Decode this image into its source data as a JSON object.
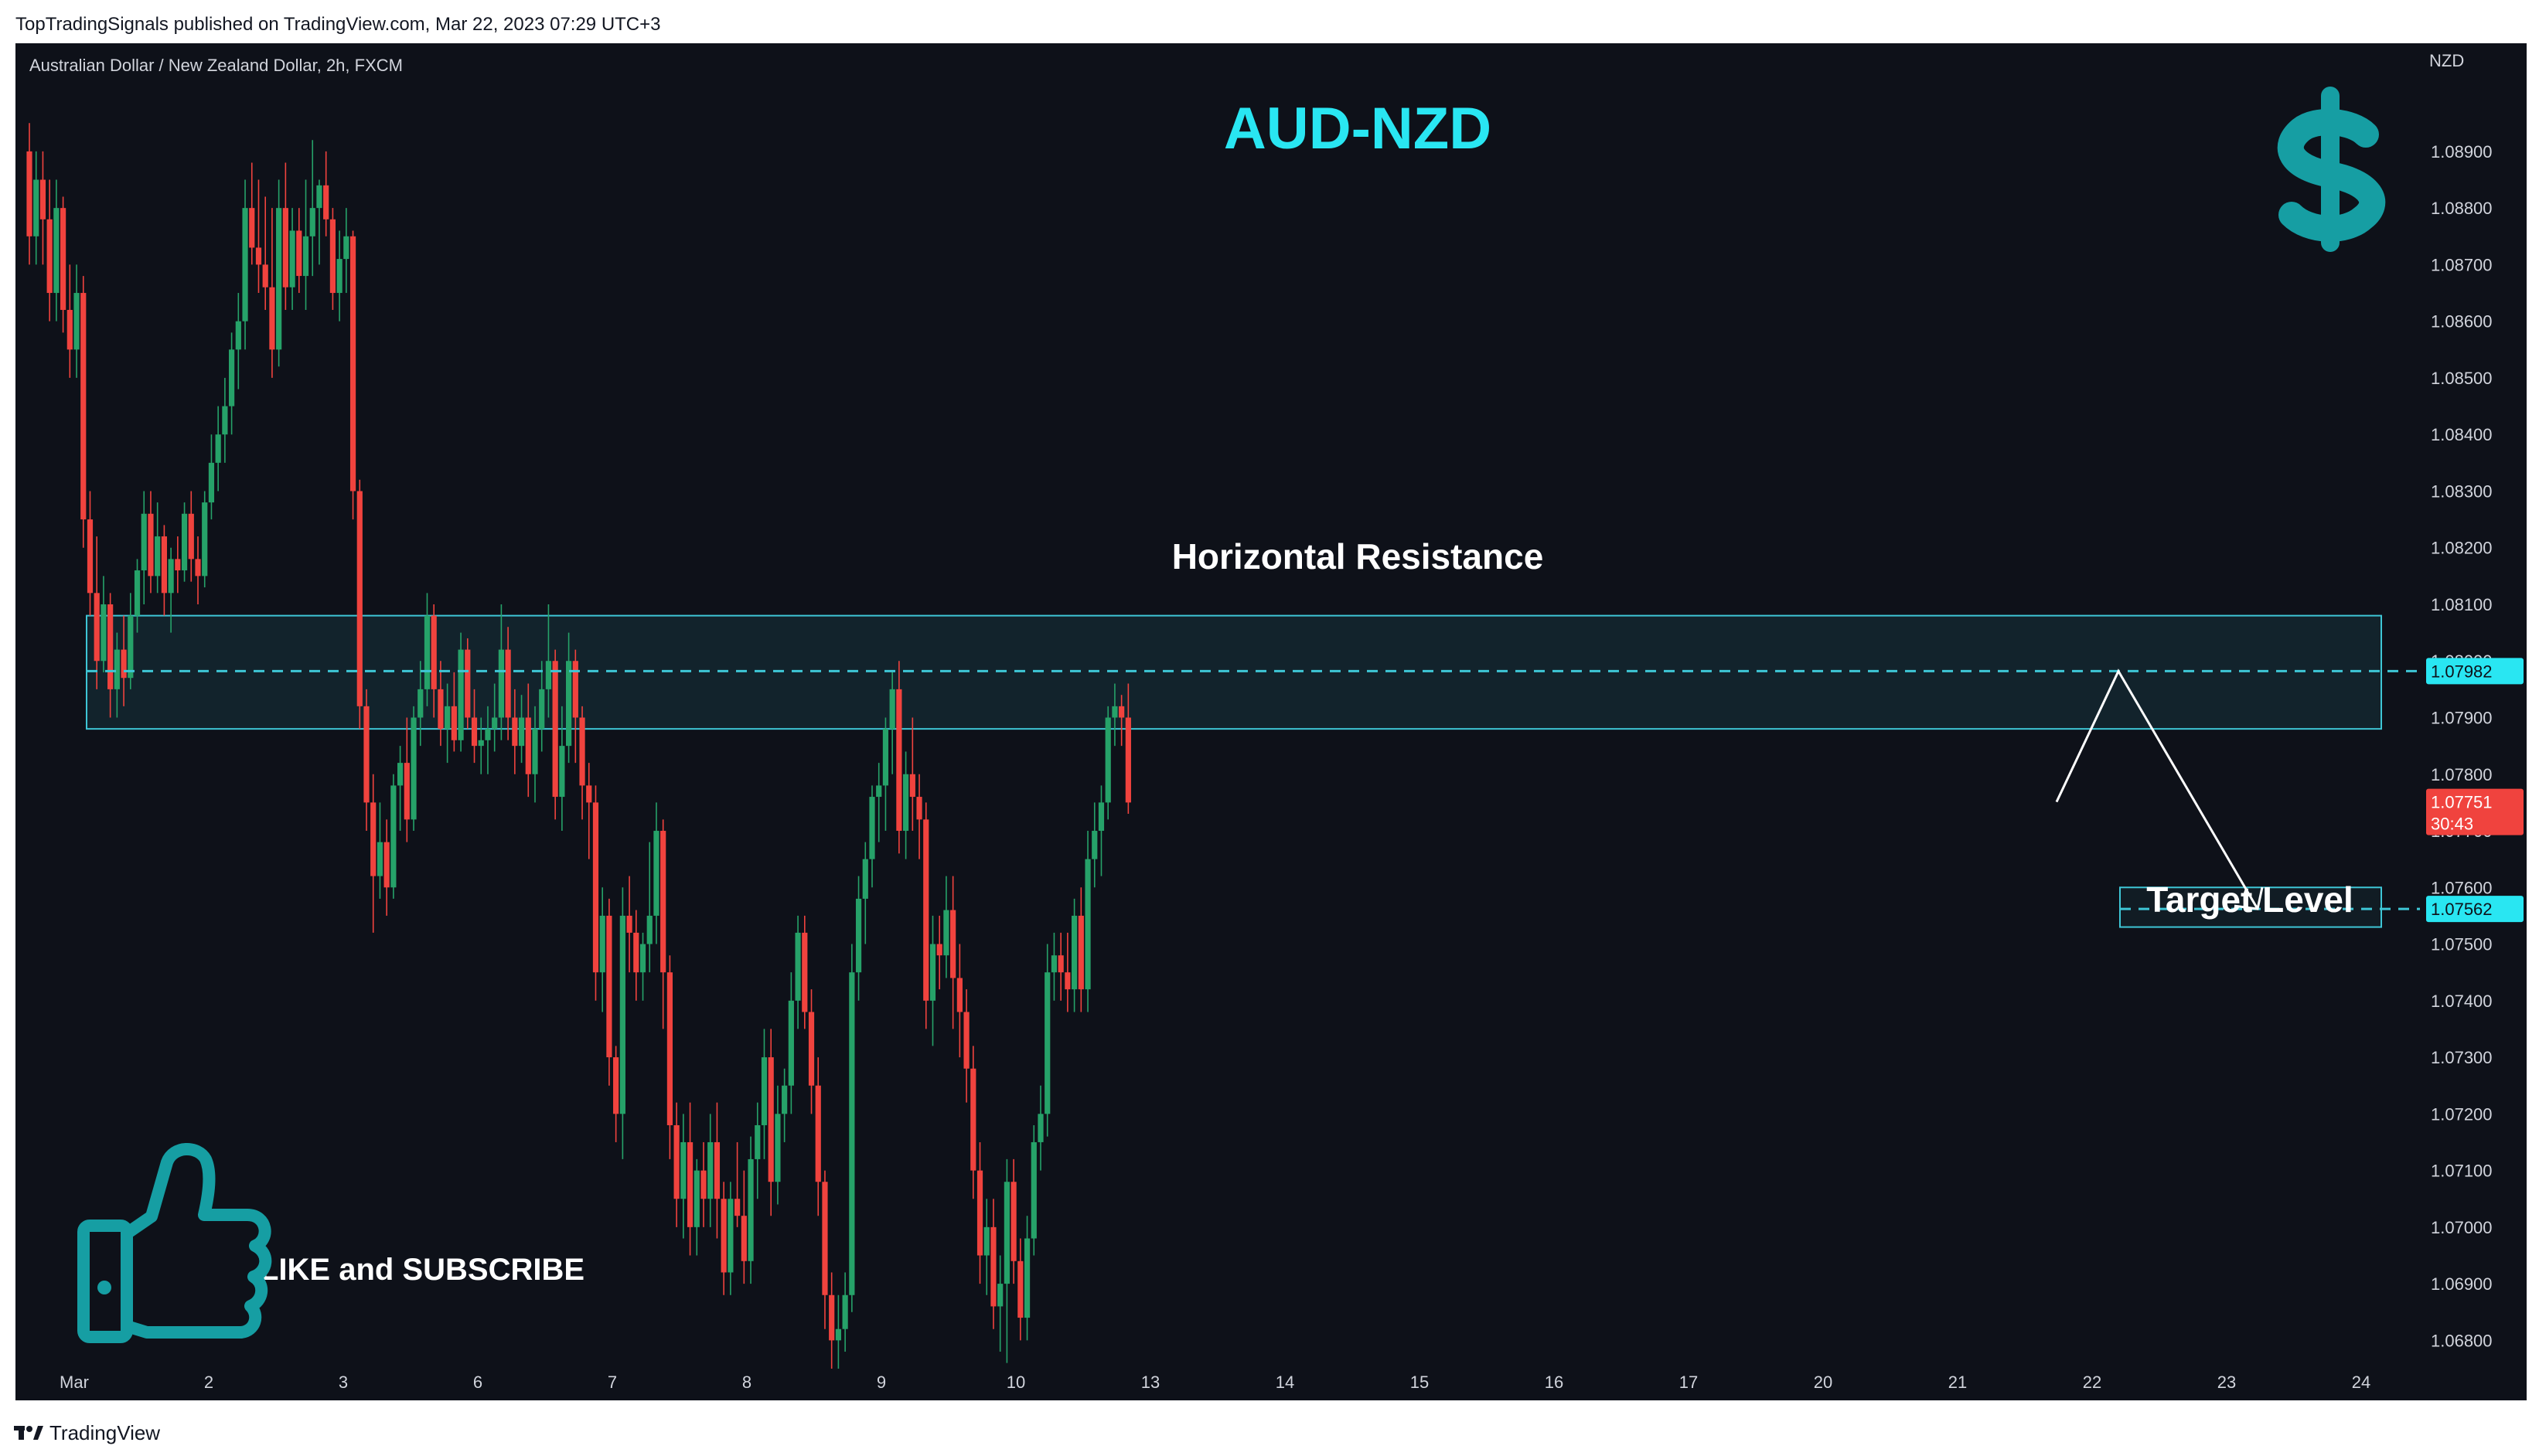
{
  "publisher_caption": "TopTradingSignals published on TradingView.com, Mar 22, 2023 07:29 UTC+3",
  "footer_brand": "TradingView",
  "colors": {
    "background": "#0e1119",
    "bull": "#26a269",
    "bear": "#f0433e",
    "zone": "#3ec6d6",
    "title": "#29e6f2",
    "dollar": "#169ea3"
  },
  "icons": [
    "dollar-sign-icon",
    "thumbs-up-icon",
    "tradingview-logo-icon"
  ],
  "chart_data": {
    "type": "candlestick",
    "symbol_info": "Australian Dollar / New Zealand Dollar, 2h, FXCM",
    "title": "AUD-NZD",
    "currency_label": "NZD",
    "ylim": [
      1.0675,
      1.0905
    ],
    "y_ticks": [
      "1.08900",
      "1.08800",
      "1.08700",
      "1.08600",
      "1.08500",
      "1.08400",
      "1.08300",
      "1.08200",
      "1.08100",
      "1.08000",
      "1.07900",
      "1.07800",
      "1.07700",
      "1.07600",
      "1.07500",
      "1.07400",
      "1.07300",
      "1.07200",
      "1.07100",
      "1.07000",
      "1.06900",
      "1.06800"
    ],
    "x_ticks": [
      "Mar",
      "2",
      "3",
      "6",
      "7",
      "8",
      "9",
      "10",
      "13",
      "14",
      "15",
      "16",
      "17",
      "20",
      "21",
      "22",
      "23",
      "24"
    ],
    "price_tags": {
      "resistance_line": "1.07982",
      "current_price": "1.07751",
      "countdown": "30:43",
      "target": "1.07562"
    },
    "annotations": {
      "resistance_label": "Horizontal Resistance",
      "resistance_zone": [
        1.0788,
        1.0808
      ],
      "resistance_line": 1.07982,
      "target_label": "Target Level",
      "target_zone": [
        1.0753,
        1.076
      ],
      "target_line": 1.07562,
      "projection_path": [
        1.07751,
        1.07982,
        1.07562
      ],
      "promo_text": "LIKE and SUBSCRIBE"
    },
    "candles_ohlc": [
      [
        1.089,
        1.0895,
        1.087,
        1.0875
      ],
      [
        1.0875,
        1.089,
        1.087,
        1.0885
      ],
      [
        1.0885,
        1.089,
        1.087,
        1.0878
      ],
      [
        1.0878,
        1.0885,
        1.086,
        1.0865
      ],
      [
        1.0865,
        1.0885,
        1.086,
        1.088
      ],
      [
        1.088,
        1.0882,
        1.0858,
        1.0862
      ],
      [
        1.0862,
        1.087,
        1.085,
        1.0855
      ],
      [
        1.0855,
        1.087,
        1.085,
        1.0865
      ],
      [
        1.0865,
        1.0868,
        1.082,
        1.0825
      ],
      [
        1.0825,
        1.083,
        1.0808,
        1.0812
      ],
      [
        1.0812,
        1.0822,
        1.0795,
        1.08
      ],
      [
        1.08,
        1.0815,
        1.0798,
        1.081
      ],
      [
        1.081,
        1.0812,
        1.079,
        1.0795
      ],
      [
        1.0795,
        1.0805,
        1.079,
        1.0802
      ],
      [
        1.0802,
        1.0808,
        1.0792,
        1.0797
      ],
      [
        1.0797,
        1.0812,
        1.0795,
        1.0808
      ],
      [
        1.0808,
        1.0818,
        1.0805,
        1.0816
      ],
      [
        1.0816,
        1.083,
        1.081,
        1.0826
      ],
      [
        1.0826,
        1.083,
        1.0812,
        1.0815
      ],
      [
        1.0815,
        1.0828,
        1.0812,
        1.0822
      ],
      [
        1.0822,
        1.0824,
        1.0808,
        1.0812
      ],
      [
        1.0812,
        1.082,
        1.0805,
        1.0818
      ],
      [
        1.0818,
        1.0822,
        1.0812,
        1.0816
      ],
      [
        1.0816,
        1.0828,
        1.0814,
        1.0826
      ],
      [
        1.0826,
        1.083,
        1.0814,
        1.0818
      ],
      [
        1.0818,
        1.0822,
        1.081,
        1.0815
      ],
      [
        1.0815,
        1.083,
        1.0813,
        1.0828
      ],
      [
        1.0828,
        1.084,
        1.0825,
        1.0835
      ],
      [
        1.0835,
        1.0845,
        1.083,
        1.084
      ],
      [
        1.084,
        1.085,
        1.0835,
        1.0845
      ],
      [
        1.0845,
        1.0858,
        1.084,
        1.0855
      ],
      [
        1.0855,
        1.0865,
        1.0848,
        1.086
      ],
      [
        1.086,
        1.0885,
        1.0855,
        1.088
      ],
      [
        1.088,
        1.0888,
        1.087,
        1.0873
      ],
      [
        1.0873,
        1.0885,
        1.0865,
        1.087
      ],
      [
        1.087,
        1.0882,
        1.0862,
        1.0866
      ],
      [
        1.0866,
        1.088,
        1.085,
        1.0855
      ],
      [
        1.0855,
        1.0885,
        1.0852,
        1.088
      ],
      [
        1.088,
        1.0888,
        1.0862,
        1.0866
      ],
      [
        1.0866,
        1.088,
        1.0862,
        1.0876
      ],
      [
        1.0876,
        1.088,
        1.0865,
        1.0868
      ],
      [
        1.0868,
        1.0885,
        1.0862,
        1.0875
      ],
      [
        1.0875,
        1.0892,
        1.0868,
        1.088
      ],
      [
        1.088,
        1.0885,
        1.087,
        1.0884
      ],
      [
        1.0884,
        1.089,
        1.0875,
        1.0878
      ],
      [
        1.0878,
        1.088,
        1.0862,
        1.0865
      ],
      [
        1.0865,
        1.0876,
        1.086,
        1.0871
      ],
      [
        1.0871,
        1.088,
        1.0865,
        1.0875
      ],
      [
        1.0875,
        1.0876,
        1.0825,
        1.083
      ],
      [
        1.083,
        1.0832,
        1.0788,
        1.0792
      ],
      [
        1.0792,
        1.0795,
        1.077,
        1.0775
      ],
      [
        1.0775,
        1.078,
        1.0752,
        1.0762
      ],
      [
        1.0762,
        1.0775,
        1.0758,
        1.0768
      ],
      [
        1.0768,
        1.0772,
        1.0755,
        1.076
      ],
      [
        1.076,
        1.078,
        1.0758,
        1.0778
      ],
      [
        1.0778,
        1.0785,
        1.077,
        1.0782
      ],
      [
        1.0782,
        1.079,
        1.0768,
        1.0772
      ],
      [
        1.0772,
        1.0792,
        1.077,
        1.079
      ],
      [
        1.079,
        1.08,
        1.0785,
        1.0795
      ],
      [
        1.0795,
        1.0812,
        1.0792,
        1.0808
      ],
      [
        1.0808,
        1.081,
        1.079,
        1.0795
      ],
      [
        1.0795,
        1.08,
        1.0785,
        1.0788
      ],
      [
        1.0788,
        1.0796,
        1.0782,
        1.0792
      ],
      [
        1.0792,
        1.0798,
        1.0784,
        1.0786
      ],
      [
        1.0786,
        1.0805,
        1.0784,
        1.0802
      ],
      [
        1.0802,
        1.0804,
        1.0788,
        1.079
      ],
      [
        1.079,
        1.0795,
        1.0782,
        1.0785
      ],
      [
        1.0785,
        1.079,
        1.078,
        1.0786
      ],
      [
        1.0786,
        1.0792,
        1.078,
        1.0788
      ],
      [
        1.0788,
        1.0796,
        1.0784,
        1.079
      ],
      [
        1.079,
        1.081,
        1.0786,
        1.0802
      ],
      [
        1.0802,
        1.0806,
        1.0786,
        1.079
      ],
      [
        1.079,
        1.0795,
        1.078,
        1.0785
      ],
      [
        1.0785,
        1.0794,
        1.0782,
        1.079
      ],
      [
        1.079,
        1.0796,
        1.0776,
        1.078
      ],
      [
        1.078,
        1.0792,
        1.0775,
        1.0788
      ],
      [
        1.0788,
        1.08,
        1.0784,
        1.0795
      ],
      [
        1.0795,
        1.081,
        1.079,
        1.08
      ],
      [
        1.08,
        1.0802,
        1.0772,
        1.0776
      ],
      [
        1.0776,
        1.0792,
        1.077,
        1.0785
      ],
      [
        1.0785,
        1.0805,
        1.0782,
        1.08
      ],
      [
        1.08,
        1.0802,
        1.0782,
        1.079
      ],
      [
        1.079,
        1.0792,
        1.0772,
        1.0778
      ],
      [
        1.0778,
        1.0782,
        1.0765,
        1.0775
      ],
      [
        1.0775,
        1.0778,
        1.074,
        1.0745
      ],
      [
        1.0745,
        1.076,
        1.0738,
        1.0755
      ],
      [
        1.0755,
        1.0758,
        1.0725,
        1.073
      ],
      [
        1.073,
        1.0732,
        1.0715,
        1.072
      ],
      [
        1.072,
        1.076,
        1.0712,
        1.0755
      ],
      [
        1.0755,
        1.0762,
        1.0745,
        1.0752
      ],
      [
        1.0752,
        1.0756,
        1.074,
        1.0745
      ],
      [
        1.0745,
        1.0752,
        1.074,
        1.075
      ],
      [
        1.075,
        1.0768,
        1.0745,
        1.0755
      ],
      [
        1.0755,
        1.0775,
        1.075,
        1.077
      ],
      [
        1.077,
        1.0772,
        1.0735,
        1.0745
      ],
      [
        1.0745,
        1.0748,
        1.0712,
        1.0718
      ],
      [
        1.0718,
        1.0722,
        1.07,
        1.0705
      ],
      [
        1.0705,
        1.072,
        1.0698,
        1.0715
      ],
      [
        1.0715,
        1.0722,
        1.0695,
        1.07
      ],
      [
        1.07,
        1.0712,
        1.0695,
        1.071
      ],
      [
        1.071,
        1.0715,
        1.07,
        1.0705
      ],
      [
        1.0705,
        1.072,
        1.07,
        1.0715
      ],
      [
        1.0715,
        1.0722,
        1.0698,
        1.0705
      ],
      [
        1.0705,
        1.0708,
        1.0688,
        1.0692
      ],
      [
        1.0692,
        1.0708,
        1.0688,
        1.0705
      ],
      [
        1.0705,
        1.0715,
        1.07,
        1.0702
      ],
      [
        1.0702,
        1.071,
        1.069,
        1.0694
      ],
      [
        1.0694,
        1.0716,
        1.069,
        1.0712
      ],
      [
        1.0712,
        1.0722,
        1.0705,
        1.0718
      ],
      [
        1.0718,
        1.0735,
        1.0712,
        1.073
      ],
      [
        1.073,
        1.0735,
        1.0702,
        1.0708
      ],
      [
        1.0708,
        1.0725,
        1.0704,
        1.072
      ],
      [
        1.072,
        1.0728,
        1.0715,
        1.0725
      ],
      [
        1.0725,
        1.0745,
        1.072,
        1.074
      ],
      [
        1.074,
        1.0755,
        1.0735,
        1.0752
      ],
      [
        1.0752,
        1.0755,
        1.0735,
        1.0738
      ],
      [
        1.0738,
        1.0742,
        1.072,
        1.0725
      ],
      [
        1.0725,
        1.073,
        1.0702,
        1.0708
      ],
      [
        1.0708,
        1.071,
        1.0682,
        1.0688
      ],
      [
        1.0688,
        1.0692,
        1.0675,
        1.068
      ],
      [
        1.068,
        1.0688,
        1.0675,
        1.0682
      ],
      [
        1.0682,
        1.0692,
        1.0678,
        1.0688
      ],
      [
        1.0688,
        1.075,
        1.0685,
        1.0745
      ],
      [
        1.0745,
        1.0762,
        1.074,
        1.0758
      ],
      [
        1.0758,
        1.0768,
        1.075,
        1.0765
      ],
      [
        1.0765,
        1.0778,
        1.076,
        1.0776
      ],
      [
        1.0776,
        1.0782,
        1.0768,
        1.0778
      ],
      [
        1.0778,
        1.079,
        1.077,
        1.0788
      ],
      [
        1.0788,
        1.0798,
        1.078,
        1.0795
      ],
      [
        1.0795,
        1.08,
        1.0766,
        1.077
      ],
      [
        1.077,
        1.0784,
        1.0765,
        1.078
      ],
      [
        1.078,
        1.079,
        1.077,
        1.0776
      ],
      [
        1.0776,
        1.078,
        1.0765,
        1.0772
      ],
      [
        1.0772,
        1.0775,
        1.0735,
        1.074
      ],
      [
        1.074,
        1.0755,
        1.0732,
        1.075
      ],
      [
        1.075,
        1.0755,
        1.0742,
        1.0748
      ],
      [
        1.0748,
        1.0762,
        1.0744,
        1.0756
      ],
      [
        1.0756,
        1.0762,
        1.0735,
        1.0744
      ],
      [
        1.0744,
        1.075,
        1.073,
        1.0738
      ],
      [
        1.0738,
        1.0742,
        1.0722,
        1.0728
      ],
      [
        1.0728,
        1.0732,
        1.0705,
        1.071
      ],
      [
        1.071,
        1.0715,
        1.069,
        1.0695
      ],
      [
        1.0695,
        1.0705,
        1.0688,
        1.07
      ],
      [
        1.07,
        1.0705,
        1.0682,
        1.0686
      ],
      [
        1.0686,
        1.0695,
        1.0678,
        1.069
      ],
      [
        1.069,
        1.0712,
        1.0676,
        1.0708
      ],
      [
        1.0708,
        1.0712,
        1.069,
        1.0694
      ],
      [
        1.0694,
        1.0698,
        1.068,
        1.0684
      ],
      [
        1.0684,
        1.0702,
        1.068,
        1.0698
      ],
      [
        1.0698,
        1.0718,
        1.0695,
        1.0715
      ],
      [
        1.0715,
        1.0725,
        1.071,
        1.072
      ],
      [
        1.072,
        1.075,
        1.0716,
        1.0745
      ],
      [
        1.0745,
        1.0752,
        1.074,
        1.0748
      ],
      [
        1.0748,
        1.0752,
        1.074,
        1.0745
      ],
      [
        1.0745,
        1.0752,
        1.0738,
        1.0742
      ],
      [
        1.0742,
        1.0758,
        1.0738,
        1.0755
      ],
      [
        1.0755,
        1.076,
        1.0738,
        1.0742
      ],
      [
        1.0742,
        1.077,
        1.0738,
        1.0765
      ],
      [
        1.0765,
        1.0775,
        1.076,
        1.077
      ],
      [
        1.077,
        1.0778,
        1.0762,
        1.0775
      ],
      [
        1.0775,
        1.0792,
        1.0772,
        1.079
      ],
      [
        1.079,
        1.0796,
        1.0785,
        1.0792
      ],
      [
        1.0792,
        1.0794,
        1.0785,
        1.079
      ],
      [
        1.079,
        1.0796,
        1.0773,
        1.0775
      ]
    ]
  }
}
